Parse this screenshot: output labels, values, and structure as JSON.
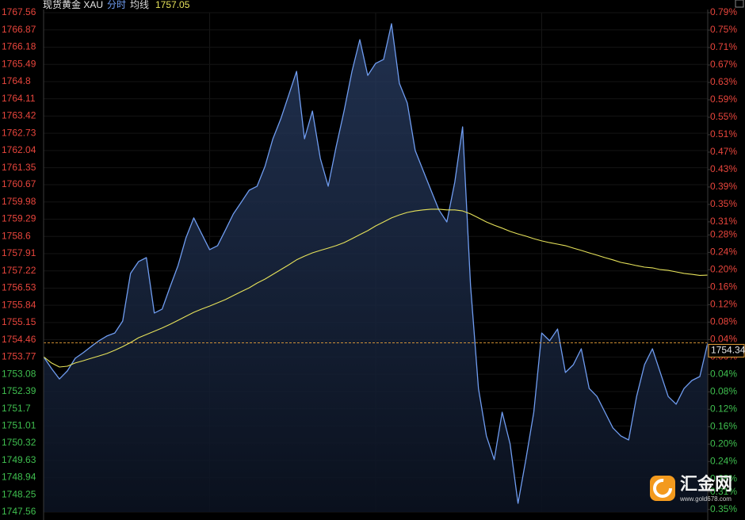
{
  "chart_data": {
    "type": "line",
    "title": "现货黄金 XAU",
    "series": [
      {
        "name": "分时",
        "color": "#6f9cf0",
        "values": [
          1753.78,
          1753.31,
          1752.89,
          1753.21,
          1753.72,
          1753.94,
          1754.19,
          1754.42,
          1754.61,
          1754.73,
          1755.21,
          1757.12,
          1757.59,
          1757.75,
          1755.53,
          1755.69,
          1756.58,
          1757.43,
          1758.54,
          1759.34,
          1758.7,
          1758.07,
          1758.23,
          1758.86,
          1759.5,
          1759.97,
          1760.45,
          1760.61,
          1761.4,
          1762.51,
          1763.31,
          1764.26,
          1765.21,
          1762.51,
          1763.62,
          1761.72,
          1760.61,
          1762.19,
          1763.62,
          1765.21,
          1766.48,
          1765.05,
          1765.53,
          1765.69,
          1767.12,
          1764.73,
          1763.94,
          1762.04,
          1761.24,
          1760.45,
          1759.66,
          1759.18,
          1760.77,
          1762.99,
          1756.64,
          1752.51,
          1750.61,
          1749.66,
          1751.56,
          1750.29,
          1747.91,
          1749.66,
          1751.56,
          1754.73,
          1754.42,
          1754.89,
          1753.15,
          1753.46,
          1754.1,
          1752.51,
          1752.19,
          1751.56,
          1750.93,
          1750.61,
          1750.45,
          1752.19,
          1753.46,
          1754.1,
          1753.15,
          1752.19,
          1751.88,
          1752.51,
          1752.83,
          1752.99,
          1754.34
        ]
      },
      {
        "name": "均线",
        "color": "#e6e25a",
        "values": [
          1753.78,
          1753.53,
          1753.37,
          1753.4,
          1753.53,
          1753.62,
          1753.72,
          1753.81,
          1753.91,
          1754.04,
          1754.19,
          1754.35,
          1754.54,
          1754.67,
          1754.8,
          1754.93,
          1755.08,
          1755.24,
          1755.4,
          1755.56,
          1755.69,
          1755.81,
          1755.94,
          1756.07,
          1756.23,
          1756.39,
          1756.54,
          1756.73,
          1756.89,
          1757.08,
          1757.27,
          1757.46,
          1757.66,
          1757.81,
          1757.94,
          1758.04,
          1758.13,
          1758.23,
          1758.35,
          1758.51,
          1758.67,
          1758.83,
          1759.02,
          1759.18,
          1759.34,
          1759.46,
          1759.56,
          1759.62,
          1759.66,
          1759.69,
          1759.69,
          1759.66,
          1759.66,
          1759.62,
          1759.5,
          1759.34,
          1759.18,
          1759.05,
          1758.93,
          1758.8,
          1758.7,
          1758.61,
          1758.51,
          1758.42,
          1758.35,
          1758.29,
          1758.23,
          1758.13,
          1758.04,
          1757.94,
          1757.85,
          1757.75,
          1757.66,
          1757.56,
          1757.5,
          1757.43,
          1757.37,
          1757.34,
          1757.27,
          1757.24,
          1757.18,
          1757.12,
          1757.08,
          1757.04,
          1757.05
        ]
      }
    ],
    "ylim": [
      1747.56,
      1767.56
    ],
    "yticks": [
      1767.56,
      1766.87,
      1766.18,
      1765.49,
      1764.8,
      1764.11,
      1763.42,
      1762.73,
      1762.04,
      1761.35,
      1760.67,
      1759.98,
      1759.29,
      1758.6,
      1757.91,
      1757.22,
      1756.53,
      1755.84,
      1755.15,
      1754.46,
      1753.77,
      1753.08,
      1752.39,
      1751.7,
      1751.01,
      1750.32,
      1749.63,
      1748.94,
      1748.25,
      1747.56
    ],
    "y2lim": [
      -0.356,
      0.79
    ],
    "y2ticks": [
      {
        "value": 0.79,
        "label": "0.79%"
      },
      {
        "value": 0.75,
        "label": "0.75%"
      },
      {
        "value": 0.71,
        "label": "0.71%"
      },
      {
        "value": 0.67,
        "label": "0.67%"
      },
      {
        "value": 0.63,
        "label": "0.63%"
      },
      {
        "value": 0.59,
        "label": "0.59%"
      },
      {
        "value": 0.55,
        "label": "0.55%"
      },
      {
        "value": 0.51,
        "label": "0.51%"
      },
      {
        "value": 0.47,
        "label": "0.47%"
      },
      {
        "value": 0.43,
        "label": "0.43%"
      },
      {
        "value": 0.39,
        "label": "0.39%"
      },
      {
        "value": 0.35,
        "label": "0.35%"
      },
      {
        "value": 0.31,
        "label": "0.31%"
      },
      {
        "value": 0.28,
        "label": "0.28%"
      },
      {
        "value": 0.24,
        "label": "0.24%"
      },
      {
        "value": 0.2,
        "label": "0.20%"
      },
      {
        "value": 0.16,
        "label": "0.16%"
      },
      {
        "value": 0.12,
        "label": "0.12%"
      },
      {
        "value": 0.08,
        "label": "0.08%"
      },
      {
        "value": 0.04,
        "label": "0.04%"
      },
      {
        "value": 0,
        "label": "0.00%"
      },
      {
        "value": -0.04,
        "label": "0.04%"
      },
      {
        "value": -0.08,
        "label": "0.08%"
      },
      {
        "value": -0.12,
        "label": "0.12%"
      },
      {
        "value": -0.16,
        "label": "0.16%"
      },
      {
        "value": -0.2,
        "label": "0.20%"
      },
      {
        "value": -0.24,
        "label": "0.24%"
      },
      {
        "value": -0.28,
        "label": "0.28%"
      },
      {
        "value": -0.31,
        "label": "0.31%"
      },
      {
        "value": -0.35,
        "label": "0.35%"
      }
    ],
    "grid": true,
    "up_color": "#e8453c",
    "down_color": "#3fbf4f",
    "watermark": {
      "name": "汇金网",
      "url": "www.gold678.com"
    }
  }
}
